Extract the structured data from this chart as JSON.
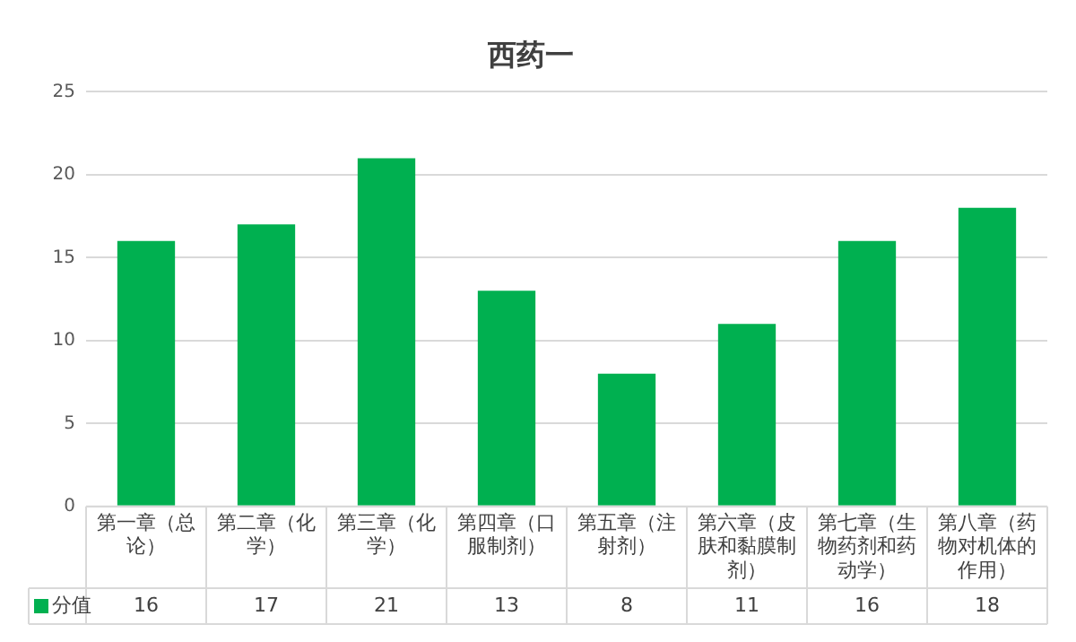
{
  "chart_data": {
    "type": "bar",
    "title": "西药一",
    "categories": [
      "第一章（总论）",
      "第二章（化学）",
      "第三章（化学）",
      "第四章（口服制剂）",
      "第五章（注射剂）",
      "第六章（皮肤和黏膜制剂）",
      "第七章（生物药剂和药动学）",
      "第八章（药物对机体的作用）"
    ],
    "series": [
      {
        "name": "分值",
        "color": "#00b050",
        "values": [
          16,
          17,
          21,
          13,
          8,
          11,
          16,
          18
        ]
      }
    ],
    "ylim": [
      0,
      25
    ],
    "yticks": [
      0,
      5,
      10,
      15,
      20,
      25
    ],
    "grid": "y",
    "legend": "bottom",
    "data_labels": true
  }
}
